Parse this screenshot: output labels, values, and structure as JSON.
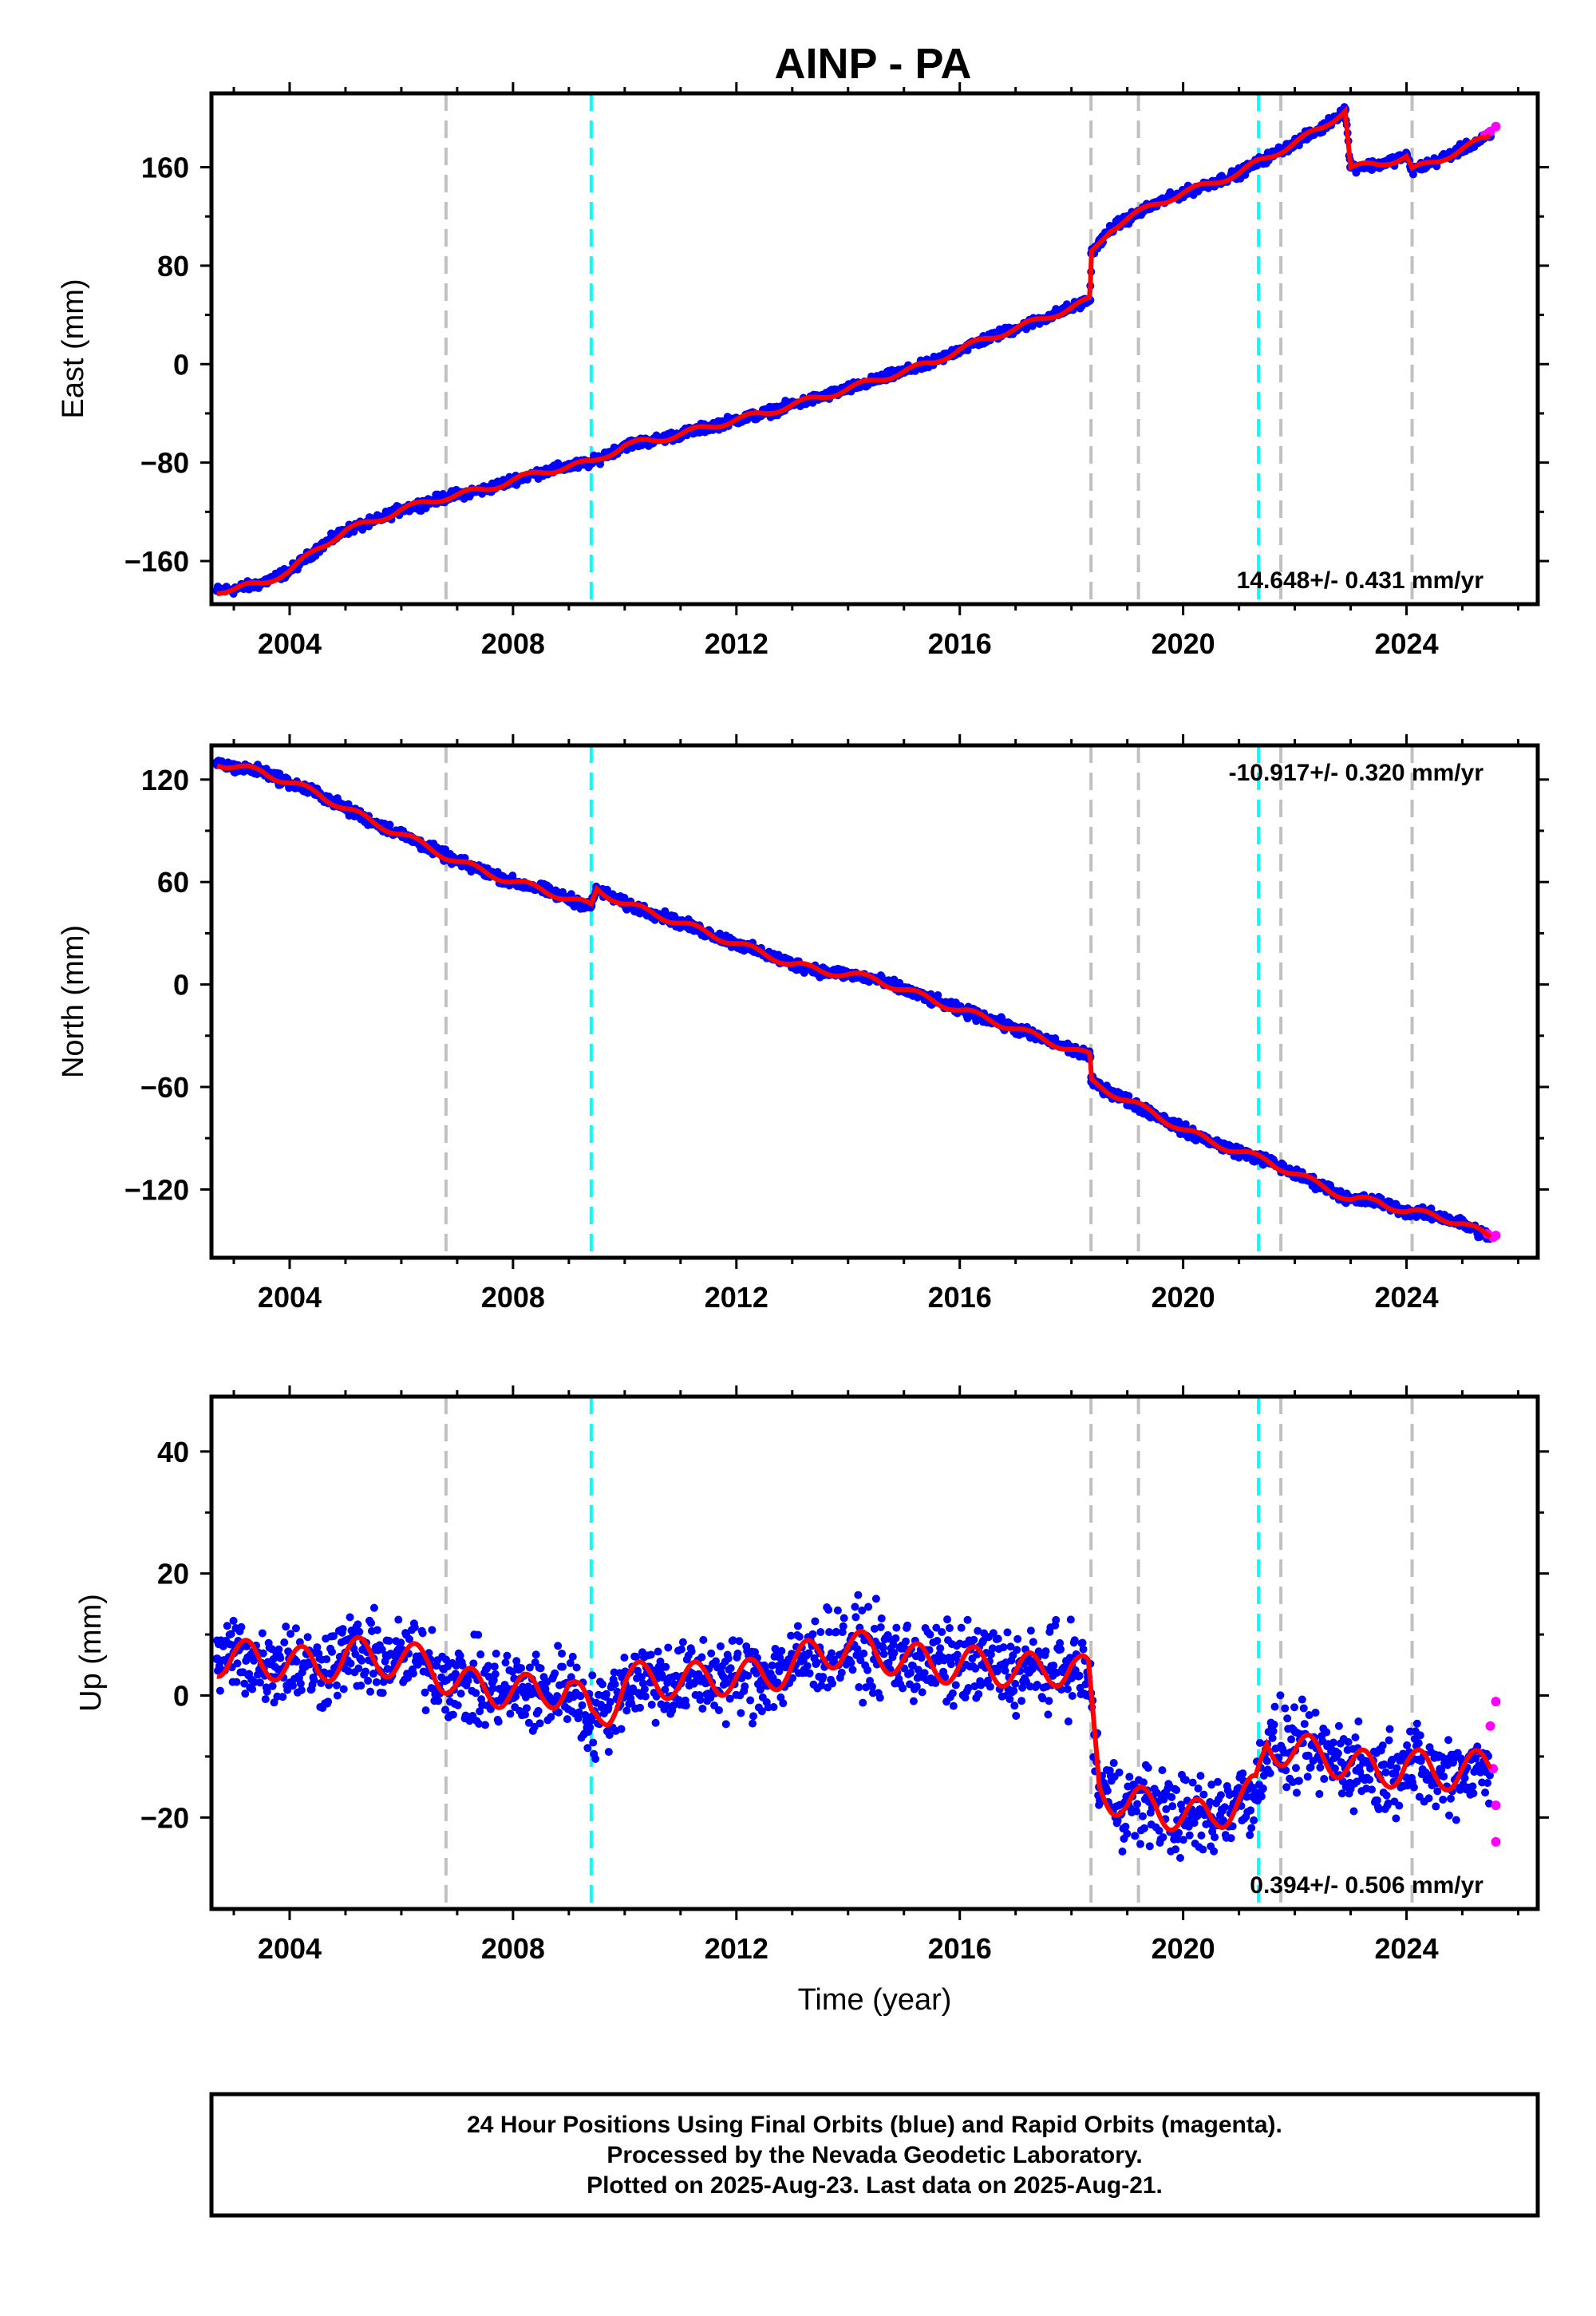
{
  "title": "AINP - PA",
  "colors": {
    "final": "#0000ff",
    "rapid": "#ff00ff",
    "model": "#ff0000",
    "equipment_change": "#c0c0c0",
    "earthquake": "#00ffff",
    "frame": "#000000"
  },
  "footer": {
    "line1": "24 Hour Positions Using Final Orbits (blue) and Rapid Orbits (magenta).",
    "line2": "Processed by the Nevada Geodetic Laboratory.",
    "line3": "Plotted on 2025-Aug-23. Last data on 2025-Aug-21."
  },
  "chart_data": [
    {
      "type": "scatter",
      "component": "East",
      "ylabel": "East (mm)",
      "xlabel": "",
      "xlim": [
        2002.6,
        2026.35
      ],
      "ylim": [
        -195,
        220
      ],
      "yticks": [
        -160,
        -80,
        0,
        80,
        160
      ],
      "xticks": [
        2004,
        2008,
        2012,
        2016,
        2020,
        2024
      ],
      "rate_text": "14.648+/- 0.431 mm/yr",
      "rate_position": "bottom-right",
      "equipment_changes": [
        2006.8,
        2018.35,
        2019.2,
        2021.75,
        2024.1
      ],
      "earthquakes": [
        2009.4,
        2021.35
      ],
      "series": [
        {
          "name": "Final Orbits",
          "color": "#0000ff",
          "x": [
            2002.7,
            2003.0,
            2003.5,
            2004.0,
            2004.5,
            2005.0,
            2005.5,
            2006.0,
            2006.5,
            2006.8,
            2007.0,
            2007.5,
            2008.0,
            2008.5,
            2009.0,
            2009.4,
            2010.0,
            2010.5,
            2011.0,
            2011.5,
            2012.0,
            2012.5,
            2013.0,
            2013.5,
            2014.0,
            2014.5,
            2015.0,
            2015.5,
            2016.0,
            2016.5,
            2017.0,
            2017.5,
            2018.0,
            2018.33,
            2018.36,
            2018.7,
            2019.0,
            2019.5,
            2020.0,
            2020.5,
            2021.0,
            2021.3,
            2021.6,
            2022.0,
            2022.5,
            2022.9,
            2023.0,
            2023.5,
            2024.0,
            2024.1,
            2024.5,
            2025.0,
            2025.5
          ],
          "y": [
            -184,
            -183,
            -178,
            -168,
            -150,
            -135,
            -128,
            -118,
            -112,
            -108,
            -106,
            -102,
            -94,
            -88,
            -83,
            -80,
            -66,
            -62,
            -57,
            -51,
            -45,
            -40,
            -33,
            -27,
            -20,
            -13,
            -6,
            1,
            12,
            21,
            29,
            37,
            46,
            52,
            90,
            110,
            118,
            130,
            139,
            147,
            155,
            163,
            170,
            180,
            192,
            207,
            160,
            162,
            169,
            158,
            164,
            175,
            185
          ]
        },
        {
          "name": "Rapid Orbits",
          "color": "#ff00ff",
          "x": [
            2025.4,
            2025.5,
            2025.6
          ],
          "y": [
            186,
            189,
            193
          ]
        }
      ]
    },
    {
      "type": "scatter",
      "component": "North",
      "ylabel": "North (mm)",
      "xlabel": "",
      "xlim": [
        2002.6,
        2026.35
      ],
      "ylim": [
        -160,
        140
      ],
      "yticks": [
        -120,
        -60,
        0,
        60,
        120
      ],
      "xticks": [
        2004,
        2008,
        2012,
        2016,
        2020,
        2024
      ],
      "rate_text": "-10.917+/- 0.320 mm/yr",
      "rate_position": "top-right",
      "equipment_changes": [
        2006.8,
        2018.35,
        2019.2,
        2021.75,
        2024.1
      ],
      "earthquakes": [
        2009.4,
        2021.35
      ],
      "series": [
        {
          "name": "Final Orbits",
          "color": "#0000ff",
          "x": [
            2002.7,
            2003.0,
            2003.5,
            2004.0,
            2004.5,
            2005.0,
            2005.5,
            2006.0,
            2006.5,
            2007.0,
            2007.5,
            2008.0,
            2008.5,
            2009.0,
            2009.4,
            2009.5,
            2010.0,
            2010.5,
            2011.0,
            2011.5,
            2012.0,
            2012.5,
            2013.0,
            2013.5,
            2014.0,
            2014.5,
            2015.0,
            2015.5,
            2016.0,
            2016.5,
            2017.0,
            2017.5,
            2018.0,
            2018.33,
            2018.36,
            2019.0,
            2019.5,
            2020.0,
            2020.5,
            2021.0,
            2021.5,
            2022.0,
            2022.5,
            2023.0,
            2023.5,
            2024.0,
            2024.5,
            2025.0,
            2025.5
          ],
          "y": [
            130,
            127,
            125,
            118,
            112,
            103,
            95,
            88,
            80,
            72,
            66,
            60,
            56,
            50,
            46,
            56,
            47,
            42,
            36,
            30,
            24,
            18,
            12,
            8,
            6,
            3,
            -3,
            -9,
            -15,
            -20,
            -26,
            -32,
            -38,
            -42,
            -57,
            -68,
            -76,
            -85,
            -92,
            -98,
            -103,
            -111,
            -118,
            -126,
            -127,
            -133,
            -135,
            -140,
            -148
          ]
        },
        {
          "name": "Rapid Orbits",
          "color": "#ff00ff",
          "x": [
            2025.45,
            2025.55,
            2025.6
          ],
          "y": [
            -146,
            -148,
            -147
          ]
        }
      ]
    },
    {
      "type": "scatter",
      "component": "Up",
      "ylabel": "Up (mm)",
      "xlabel": "Time (year)",
      "xlim": [
        2002.6,
        2026.35
      ],
      "ylim": [
        -35,
        49
      ],
      "yticks": [
        -20,
        0,
        20,
        40
      ],
      "xticks": [
        2004,
        2008,
        2012,
        2016,
        2020,
        2024
      ],
      "rate_text": "0.394+/- 0.506 mm/yr",
      "rate_position": "bottom-right",
      "equipment_changes": [
        2006.8,
        2018.35,
        2019.2,
        2021.75,
        2024.1
      ],
      "earthquakes": [
        2009.4,
        2021.35
      ],
      "series": [
        {
          "name": "Final Orbits",
          "color": "#0000ff",
          "x": [
            2002.7,
            2003.0,
            2003.5,
            2004.0,
            2004.5,
            2005.0,
            2005.5,
            2006.0,
            2006.5,
            2007.0,
            2007.5,
            2008.0,
            2008.5,
            2009.0,
            2009.4,
            2009.7,
            2010.0,
            2010.5,
            2011.0,
            2011.5,
            2012.0,
            2012.5,
            2013.0,
            2013.5,
            2014.0,
            2014.5,
            2015.0,
            2015.5,
            2016.0,
            2016.5,
            2017.0,
            2017.5,
            2018.0,
            2018.3,
            2018.5,
            2019.0,
            2019.5,
            2020.0,
            2020.5,
            2021.0,
            2021.3,
            2021.5,
            2022.0,
            2022.5,
            2023.0,
            2023.5,
            2024.0,
            2024.5,
            2025.0,
            2025.5
          ],
          "y": [
            6,
            7,
            5,
            6,
            4,
            7,
            6,
            6,
            5,
            2,
            1,
            1,
            0,
            2,
            -4,
            -2,
            2,
            3,
            2,
            3,
            3,
            3,
            5,
            7,
            8,
            7,
            6,
            5,
            5,
            5,
            4,
            4,
            5,
            3,
            -15,
            -18,
            -18,
            -20,
            -20,
            -17,
            -16,
            -8,
            -9,
            -10,
            -11,
            -13,
            -11,
            -13,
            -12,
            -12
          ]
        },
        {
          "name": "Rapid Orbits",
          "color": "#ff00ff",
          "x": [
            2025.5,
            2025.55,
            2025.6,
            2025.6,
            2025.6
          ],
          "y": [
            -5,
            -12,
            -18,
            -24,
            -1
          ]
        }
      ]
    }
  ]
}
